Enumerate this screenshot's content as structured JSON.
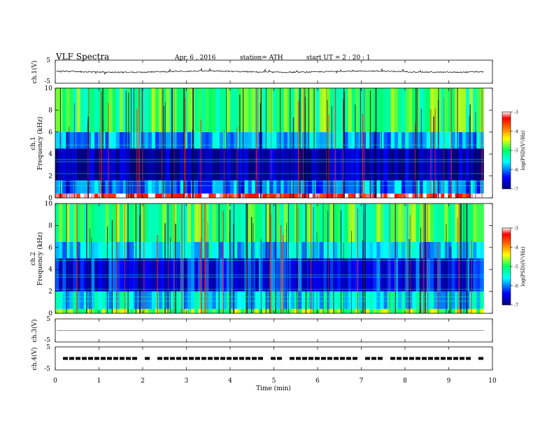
{
  "header": {
    "title": "VLF  Spectra",
    "date": "Apr. 6  , 2016",
    "station": "station= ATH",
    "start": "start  UT  =   2  : 20 : 1"
  },
  "chart_data": [
    {
      "type": "line",
      "panel": "ch1-waveform",
      "ylabel": "ch.1(V)",
      "yticks": [
        "5",
        "-5"
      ],
      "ylim": [
        -5,
        5
      ],
      "xlim": [
        0,
        10
      ],
      "series": [
        {
          "values_desc": "noisy trace near 0 V, spikes up to about +1 V and down to about -1.5 V, ending at 9.8 min"
        }
      ]
    },
    {
      "type": "heatmap",
      "panel": "ch1-spectrogram",
      "ylabel": "ch.1\nFrequency (kHz)",
      "ylabel_line1": "ch.1",
      "ylabel_line2": "Frequency (kHz)",
      "ylim": [
        0,
        10
      ],
      "yticks": [
        "0",
        "2",
        "4",
        "6",
        "8",
        "10"
      ],
      "xlim": [
        0,
        10
      ],
      "data_end_min": 9.8,
      "colorbar": {
        "label": "log(PSD)(V²/Hz)",
        "ticks": [
          "-3",
          "-4",
          "-5",
          "-6",
          "-7"
        ],
        "range": [
          -7,
          -3
        ]
      },
      "bands_khz": [
        {
          "from": 0,
          "to": 0.4,
          "log_psd": -3.3
        },
        {
          "from": 0.4,
          "to": 1.6,
          "log_psd": -6.0
        },
        {
          "from": 1.6,
          "to": 4.5,
          "log_psd": -6.8
        },
        {
          "from": 4.5,
          "to": 6.0,
          "log_psd": -5.8
        },
        {
          "from": 6.0,
          "to": 10,
          "log_psd": -5.0
        }
      ]
    },
    {
      "type": "heatmap",
      "panel": "ch2-spectrogram",
      "ylabel": "ch.2\nFrequency (kHz)",
      "ylabel_line1": "ch.2",
      "ylabel_line2": "Frequency (kHz)",
      "ylim": [
        0,
        10
      ],
      "yticks": [
        "0",
        "2",
        "4",
        "6",
        "8",
        "10"
      ],
      "xlim": [
        0,
        10
      ],
      "data_end_min": 9.8,
      "colorbar": {
        "label": "log(PSD)(V²/Hz)",
        "ticks": [
          "-3",
          "-4",
          "-5",
          "-6",
          "-7"
        ],
        "range": [
          -7,
          -3
        ]
      },
      "bands_khz": [
        {
          "from": 0,
          "to": 0.4,
          "log_psd": -4.8
        },
        {
          "from": 0.4,
          "to": 2.0,
          "log_psd": -5.6
        },
        {
          "from": 2.0,
          "to": 5.0,
          "log_psd": -6.4
        },
        {
          "from": 5.0,
          "to": 6.5,
          "log_psd": -5.7
        },
        {
          "from": 6.5,
          "to": 10,
          "log_psd": -5.0
        }
      ]
    },
    {
      "type": "line",
      "panel": "ch3-waveform",
      "ylabel": "ch.3(V)",
      "yticks": [
        "5",
        "-5"
      ],
      "ylim": [
        -5,
        5
      ],
      "xlim": [
        0,
        10
      ],
      "series": [
        {
          "values_desc": "flat near 0 V"
        }
      ]
    },
    {
      "type": "line",
      "panel": "ch4-waveform",
      "ylabel": "ch.4(V)",
      "yticks": [
        "5",
        "-5"
      ],
      "ylim": [
        -5,
        5
      ],
      "xlim": [
        0,
        10
      ],
      "series": [
        {
          "values_desc": "pulse train near 0 V with periodic gaps"
        }
      ]
    }
  ],
  "xaxis": {
    "label": "Time  (min)",
    "ticks": [
      "0",
      "1",
      "2",
      "3",
      "4",
      "5",
      "6",
      "7",
      "8",
      "9",
      "10"
    ]
  }
}
